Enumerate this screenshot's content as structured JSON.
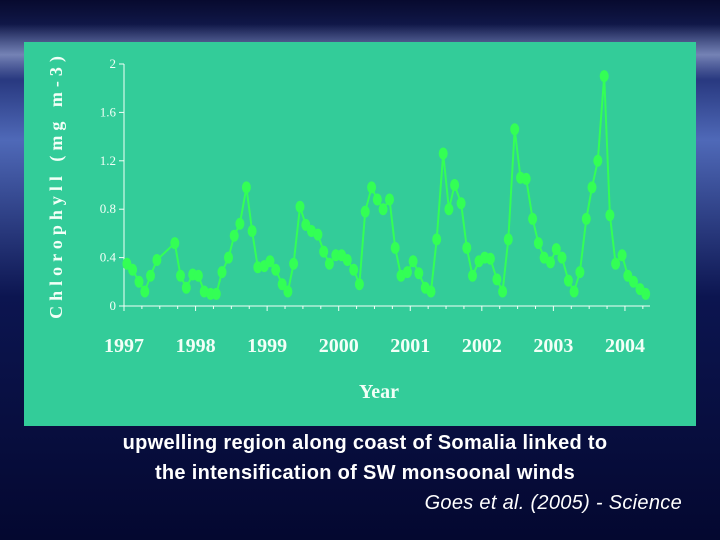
{
  "caption": {
    "line1": "upwelling region along coast of Somalia linked to",
    "line2": "the intensification of SW monsoonal winds",
    "citation": "Goes et al. (2005) - Science"
  },
  "colors": {
    "panel": "#33cc99",
    "series": "#33ff55",
    "axis": "#f2fff7"
  },
  "chart_data": {
    "type": "line",
    "title": "",
    "xlabel": "Year",
    "ylabel": "Chlorophyll (mg m-3)",
    "xlim": [
      1997,
      2004.35
    ],
    "ylim": [
      0,
      2
    ],
    "x_ticks": [
      "1997",
      "1998",
      "1999",
      "2000",
      "2001",
      "2002",
      "2003",
      "2004"
    ],
    "y_ticks": [
      "0",
      "0.4",
      "0.8",
      "1.2",
      "1.6",
      "2"
    ],
    "grid": false,
    "series": [
      {
        "name": "",
        "x": [
          1997.04,
          1997.12,
          1997.21,
          1997.29,
          1997.37,
          1997.46,
          1997.71,
          1997.79,
          1997.87,
          1997.96,
          1998.04,
          1998.12,
          1998.21,
          1998.29,
          1998.37,
          1998.46,
          1998.54,
          1998.62,
          1998.71,
          1998.79,
          1998.87,
          1998.96,
          1999.04,
          1999.12,
          1999.21,
          1999.29,
          1999.37,
          1999.46,
          1999.54,
          1999.62,
          1999.71,
          1999.79,
          1999.87,
          1999.96,
          2000.04,
          2000.12,
          2000.21,
          2000.29,
          2000.37,
          2000.46,
          2000.54,
          2000.62,
          2000.71,
          2000.79,
          2000.87,
          2000.96,
          2001.04,
          2001.12,
          2001.21,
          2001.29,
          2001.37,
          2001.46,
          2001.54,
          2001.62,
          2001.71,
          2001.79,
          2001.87,
          2001.96,
          2002.04,
          2002.12,
          2002.21,
          2002.29,
          2002.37,
          2002.46,
          2002.54,
          2002.62,
          2002.71,
          2002.79,
          2002.87,
          2002.96,
          2003.04,
          2003.12,
          2003.21,
          2003.29,
          2003.37,
          2003.46,
          2003.54,
          2003.62,
          2003.71,
          2003.79,
          2003.87,
          2003.96,
          2004.04,
          2004.12,
          2004.21,
          2004.29
        ],
        "values": [
          0.35,
          0.3,
          0.2,
          0.12,
          0.25,
          0.38,
          0.52,
          0.25,
          0.15,
          0.26,
          0.25,
          0.12,
          0.1,
          0.1,
          0.28,
          0.4,
          0.58,
          0.68,
          0.98,
          0.62,
          0.32,
          0.33,
          0.37,
          0.3,
          0.18,
          0.12,
          0.35,
          0.82,
          0.67,
          0.62,
          0.59,
          0.45,
          0.35,
          0.42,
          0.42,
          0.38,
          0.3,
          0.18,
          0.78,
          0.98,
          0.88,
          0.8,
          0.88,
          0.48,
          0.25,
          0.28,
          0.37,
          0.27,
          0.15,
          0.12,
          0.55,
          1.26,
          0.8,
          1.0,
          0.85,
          0.48,
          0.25,
          0.37,
          0.4,
          0.39,
          0.22,
          0.12,
          0.55,
          1.46,
          1.06,
          1.05,
          0.72,
          0.52,
          0.4,
          0.36,
          0.47,
          0.4,
          0.21,
          0.12,
          0.28,
          0.72,
          0.98,
          1.2,
          1.9,
          0.75,
          0.35,
          0.42,
          0.25,
          0.2,
          0.14,
          0.1
        ]
      }
    ]
  }
}
